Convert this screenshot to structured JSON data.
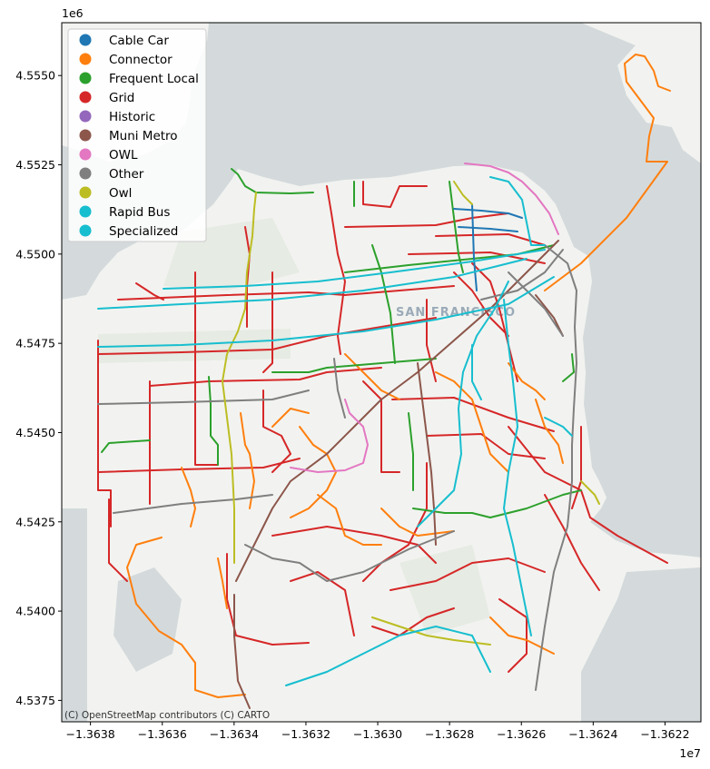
{
  "chart_data": {
    "type": "map",
    "x_scale_label": "1e7",
    "y_scale_label": "1e6",
    "x_ticks": [
      "−1.3638",
      "−1.3636",
      "−1.3634",
      "−1.3632",
      "−1.3630",
      "−1.3628",
      "−1.3626",
      "−1.3624",
      "−1.3622"
    ],
    "x_tick_values": [
      -1.3638,
      -1.3636,
      -1.3634,
      -1.3632,
      -1.363,
      -1.3628,
      -1.3626,
      -1.3624,
      -1.3622
    ],
    "y_ticks": [
      "4.5375",
      "4.5400",
      "4.5425",
      "4.5450",
      "4.5475",
      "4.5500",
      "4.5525",
      "4.5550"
    ],
    "y_tick_values": [
      4.5375,
      4.54,
      4.5425,
      4.545,
      4.5475,
      4.55,
      4.5525,
      4.555
    ],
    "xlim": [
      -1.36388,
      -1.3621
    ],
    "ylim": [
      4.5369,
      4.55648
    ],
    "legend_placement": "top-left",
    "legend": [
      {
        "name": "Cable Car",
        "color": "#1f77b4"
      },
      {
        "name": "Connector",
        "color": "#ff7f0e"
      },
      {
        "name": "Frequent Local",
        "color": "#2ca02c"
      },
      {
        "name": "Grid",
        "color": "#d62728"
      },
      {
        "name": "Historic",
        "color": "#9467bd"
      },
      {
        "name": "Muni Metro",
        "color": "#8c564b"
      },
      {
        "name": "OWL",
        "color": "#e377c2"
      },
      {
        "name": "Other",
        "color": "#7f7f7f"
      },
      {
        "name": "Owl",
        "color": "#bcbd22"
      },
      {
        "name": "Rapid Bus",
        "color": "#17becf"
      },
      {
        "name": "Specialized",
        "color": "#17becf"
      }
    ],
    "basemap_label": "SAN FRANCISCO",
    "attribution": "(C) OpenStreetMap contributors (C) CARTO"
  }
}
